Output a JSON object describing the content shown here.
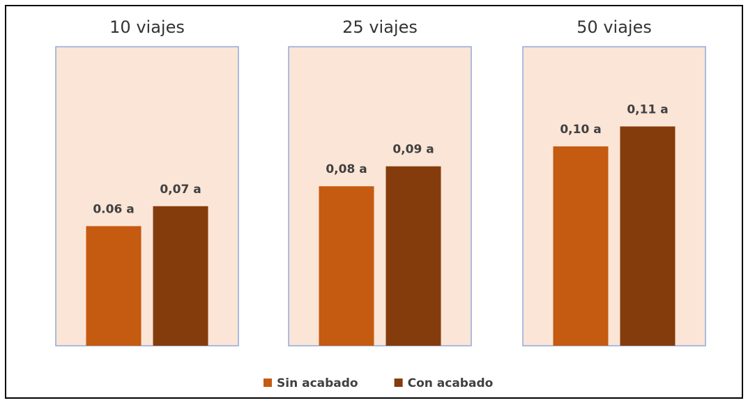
{
  "chart_data": {
    "type": "bar",
    "categories": [
      "10 viajes",
      "25 viajes",
      "50 viajes"
    ],
    "series": [
      {
        "name": "Sin acabado",
        "color": "#c55a11",
        "values": [
          0.06,
          0.08,
          0.1
        ],
        "value_labels": [
          "0.06 a",
          "0,08 a",
          "0,10 a"
        ]
      },
      {
        "name": "Con acabado",
        "color": "#843c0c",
        "values": [
          0.07,
          0.09,
          0.11
        ],
        "value_labels": [
          "0,07 a",
          "0,09 a",
          "0,11 a"
        ]
      }
    ],
    "ylim": [
      0,
      0.15
    ]
  }
}
